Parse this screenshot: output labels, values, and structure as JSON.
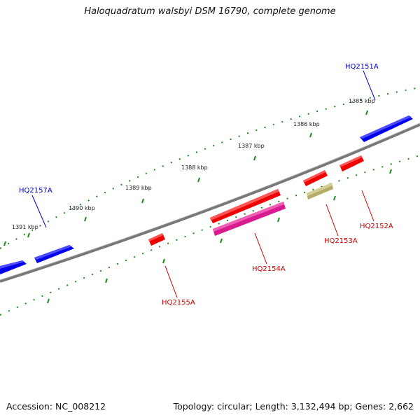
{
  "title": "Haloquadratum walsbyi DSM 16790, complete genome",
  "footer": {
    "accession": "Accession: NC_008212",
    "topology": "Topology: circular; Length: 3,132,494 bp; Genes: 2,662"
  },
  "colors": {
    "backbone": "#7a7a7a",
    "tick": "#1f8a1f",
    "forward_gene": "#0000ee",
    "reverse_gene": "#ee0000",
    "magenta_gene": "#d81b8f",
    "olive_gene": "#b5ad6a",
    "forward_label": "#0000cc",
    "reverse_label": "#cc0000"
  },
  "scale_labels": [
    "1385 kbp",
    "1386 kbp",
    "1387 kbp",
    "1388 kbp",
    "1389 kbp",
    "1390 kbp",
    "1391 kbp"
  ],
  "gene_labels": {
    "forward": [
      "HQ2151A",
      "HQ2157A"
    ],
    "reverse": [
      "HQ2152A",
      "HQ2153A",
      "HQ2154A",
      "HQ2155A"
    ]
  }
}
